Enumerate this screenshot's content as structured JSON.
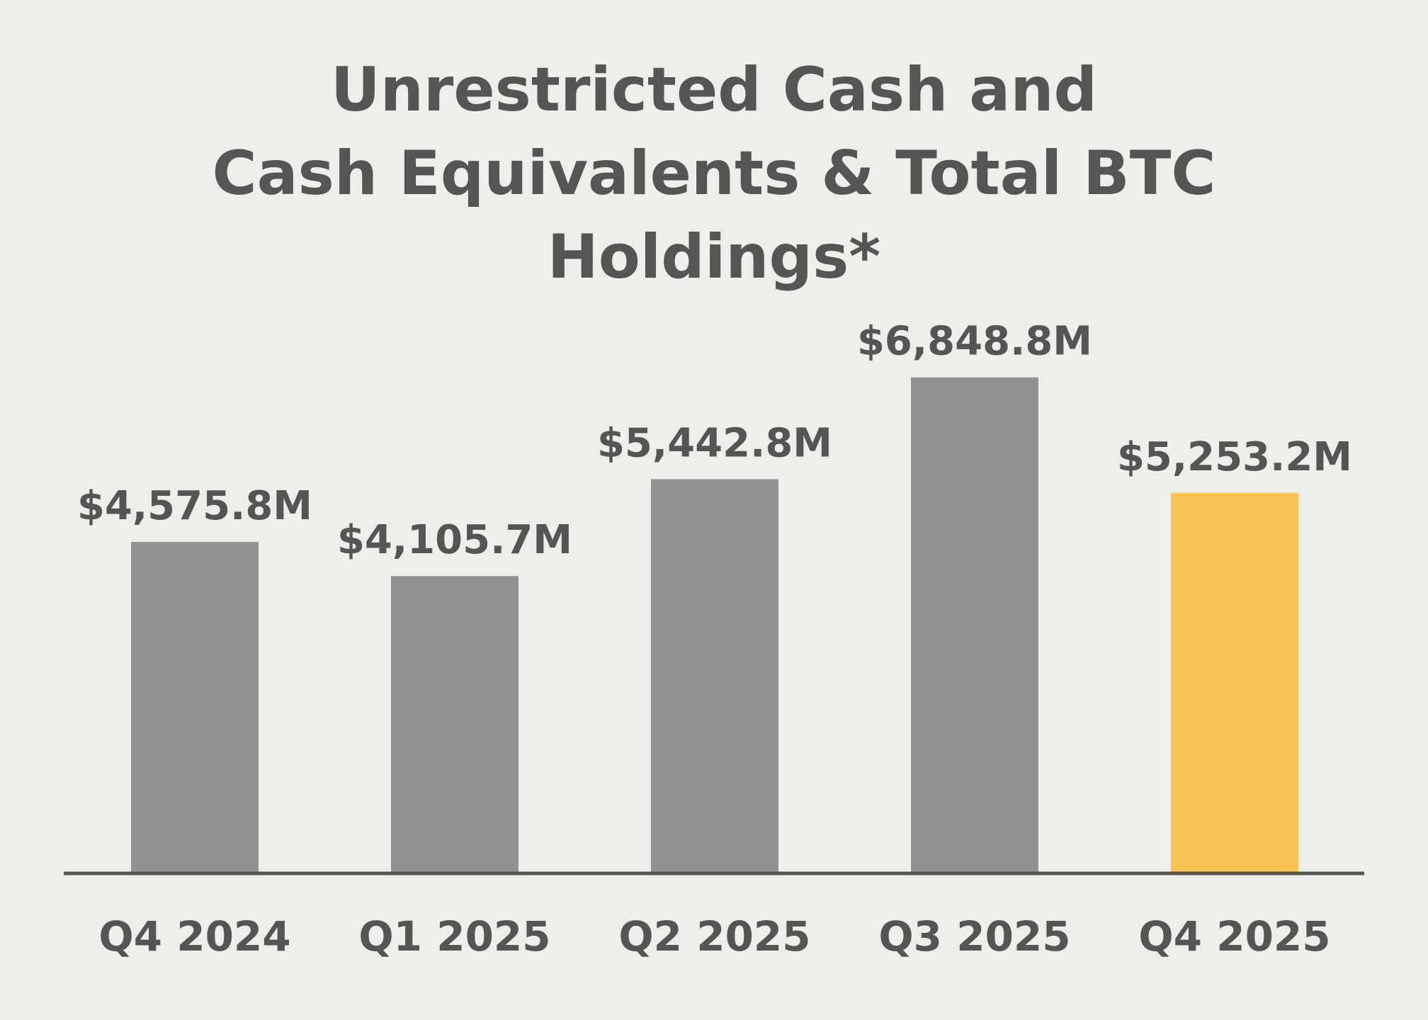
{
  "chart_data": {
    "type": "bar",
    "title_lines": [
      "Unrestricted Cash and",
      "Cash Equivalents & Total BTC",
      "Holdings*"
    ],
    "categories": [
      "Q4 2024",
      "Q1 2025",
      "Q2 2025",
      "Q3 2025",
      "Q4 2025"
    ],
    "values": [
      4575.8,
      4105.7,
      5442.8,
      6848.8,
      5253.2
    ],
    "value_labels": [
      "$4,575.8M",
      "$4,105.7M",
      "$5,442.8M",
      "$6,848.8M",
      "$5,253.2M"
    ],
    "unit": "$M",
    "ylim": [
      0,
      7000
    ],
    "grid": false,
    "legend": "none",
    "colors": [
      "#929292",
      "#929292",
      "#929292",
      "#929292",
      "#F8C254"
    ],
    "axis_color": "#555555",
    "text_color": "#555555"
  }
}
